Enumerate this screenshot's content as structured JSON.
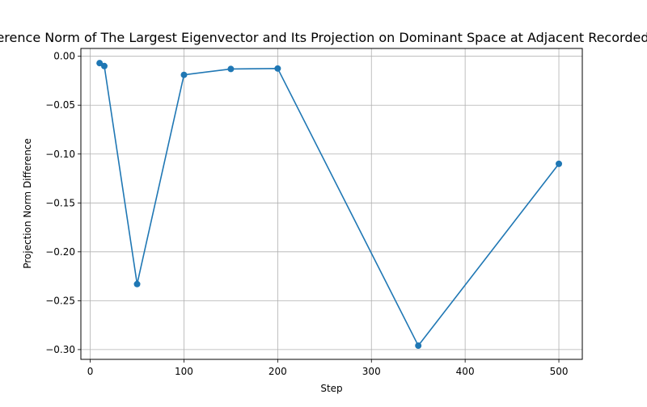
{
  "chart_data": {
    "type": "line",
    "title": "Difference Norm of The Largest Eigenvector and Its Projection on Dominant Space at Adjacent Recorded Steps",
    "xlabel": "Step",
    "ylabel": "Projection Norm Difference",
    "xlim": [
      -10,
      525
    ],
    "ylim": [
      -0.31,
      0.008
    ],
    "x_ticks": [
      0,
      100,
      200,
      300,
      400,
      500
    ],
    "x_tick_labels": [
      "0",
      "100",
      "200",
      "300",
      "400",
      "500"
    ],
    "y_ticks": [
      0.0,
      -0.05,
      -0.1,
      -0.15,
      -0.2,
      -0.25,
      -0.3
    ],
    "y_tick_labels": [
      "0.00",
      "−0.05",
      "−0.10",
      "−0.15",
      "−0.20",
      "−0.25",
      "−0.30"
    ],
    "grid": true,
    "marker": "circle",
    "color": "#1f77b4",
    "series": [
      {
        "x": [
          10,
          15,
          50,
          100,
          150,
          200,
          350,
          500
        ],
        "y": [
          -0.007,
          -0.01,
          -0.233,
          -0.019,
          -0.013,
          -0.0125,
          -0.296,
          -0.11
        ]
      }
    ]
  }
}
